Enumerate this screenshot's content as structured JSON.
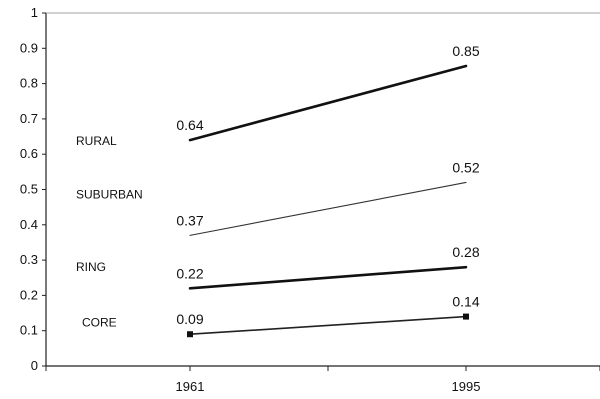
{
  "chart_data": {
    "type": "line",
    "x": [
      "1961",
      "1995"
    ],
    "ylim": [
      0,
      1
    ],
    "yticks": [
      "0",
      "0.1",
      "0.2",
      "0.3",
      "0.4",
      "0.5",
      "0.6",
      "0.7",
      "0.8",
      "0.9",
      "1"
    ],
    "grid": false,
    "series": [
      {
        "name": "RURAL",
        "values": [
          0.64,
          0.85
        ],
        "labels": [
          "0.64",
          "0.85"
        ],
        "color": "#111111",
        "weight": "heavy",
        "markers": false
      },
      {
        "name": "SUBURBAN",
        "values": [
          0.37,
          0.52
        ],
        "labels": [
          "0.37",
          "0.52"
        ],
        "color": "#333333",
        "weight": "thin",
        "markers": false
      },
      {
        "name": "RING",
        "values": [
          0.22,
          0.28
        ],
        "labels": [
          "0.22",
          "0.28"
        ],
        "color": "#111111",
        "weight": "heavy",
        "markers": false
      },
      {
        "name": "CORE",
        "values": [
          0.09,
          0.14
        ],
        "labels": [
          "0.09",
          "0.14"
        ],
        "color": "#222222",
        "weight": "medium",
        "markers": true
      }
    ]
  }
}
